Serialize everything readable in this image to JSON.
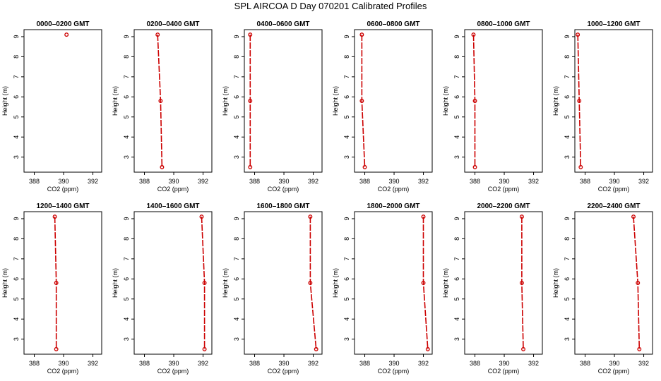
{
  "title": "SPL AIRCOA D  Day 070201  Calibrated Profiles",
  "colors": {
    "series": "#cc0000",
    "axis": "#000000"
  },
  "chart_data": [
    {
      "type": "line",
      "title": "0000–0200 GMT",
      "xlabel": "CO2 (ppm)",
      "ylabel": "Height (m)",
      "xlim": [
        387.3,
        392.6
      ],
      "ylim": [
        2.25,
        9.35
      ],
      "xticks": [
        388,
        390,
        392
      ],
      "yticks": [
        3,
        4,
        5,
        6,
        7,
        8,
        9
      ],
      "points": [
        {
          "x": 390.2,
          "y": 9.1
        }
      ]
    },
    {
      "type": "line",
      "title": "0200–0400 GMT",
      "xlabel": "CO2 (ppm)",
      "ylabel": "Height (m)",
      "xlim": [
        387.3,
        392.6
      ],
      "ylim": [
        2.25,
        9.35
      ],
      "xticks": [
        388,
        390,
        392
      ],
      "yticks": [
        3,
        4,
        5,
        6,
        7,
        8,
        9
      ],
      "points": [
        {
          "x": 388.9,
          "y": 9.1
        },
        {
          "x": 389.1,
          "y": 5.8
        },
        {
          "x": 389.2,
          "y": 2.5
        }
      ]
    },
    {
      "type": "line",
      "title": "0400–0600 GMT",
      "xlabel": "CO2 (ppm)",
      "ylabel": "Height (m)",
      "xlim": [
        387.3,
        392.6
      ],
      "ylim": [
        2.25,
        9.35
      ],
      "xticks": [
        388,
        390,
        392
      ],
      "yticks": [
        3,
        4,
        5,
        6,
        7,
        8,
        9
      ],
      "points": [
        {
          "x": 387.7,
          "y": 9.1
        },
        {
          "x": 387.7,
          "y": 5.8
        },
        {
          "x": 387.7,
          "y": 2.5
        }
      ]
    },
    {
      "type": "line",
      "title": "0600–0800 GMT",
      "xlabel": "CO2 (ppm)",
      "ylabel": "Height (m)",
      "xlim": [
        387.3,
        392.6
      ],
      "ylim": [
        2.25,
        9.35
      ],
      "xticks": [
        388,
        390,
        392
      ],
      "yticks": [
        3,
        4,
        5,
        6,
        7,
        8,
        9
      ],
      "points": [
        {
          "x": 387.8,
          "y": 9.1
        },
        {
          "x": 387.8,
          "y": 5.8
        },
        {
          "x": 388.0,
          "y": 2.5
        }
      ]
    },
    {
      "type": "line",
      "title": "0800–1000 GMT",
      "xlabel": "CO2 (ppm)",
      "ylabel": "Height (m)",
      "xlim": [
        387.3,
        392.6
      ],
      "ylim": [
        2.25,
        9.35
      ],
      "xticks": [
        388,
        390,
        392
      ],
      "yticks": [
        3,
        4,
        5,
        6,
        7,
        8,
        9
      ],
      "points": [
        {
          "x": 387.9,
          "y": 9.1
        },
        {
          "x": 388.0,
          "y": 5.8
        },
        {
          "x": 388.0,
          "y": 2.5
        }
      ]
    },
    {
      "type": "line",
      "title": "1000–1200 GMT",
      "xlabel": "CO2 (ppm)",
      "ylabel": "Height (m)",
      "xlim": [
        387.3,
        392.6
      ],
      "ylim": [
        2.25,
        9.35
      ],
      "xticks": [
        388,
        390,
        392
      ],
      "yticks": [
        3,
        4,
        5,
        6,
        7,
        8,
        9
      ],
      "points": [
        {
          "x": 387.5,
          "y": 9.1
        },
        {
          "x": 387.6,
          "y": 5.8
        },
        {
          "x": 387.7,
          "y": 2.5
        }
      ]
    },
    {
      "type": "line",
      "title": "1200–1400 GMT",
      "xlabel": "CO2 (ppm)",
      "ylabel": "Height (m)",
      "xlim": [
        387.3,
        392.6
      ],
      "ylim": [
        2.25,
        9.35
      ],
      "xticks": [
        388,
        390,
        392
      ],
      "yticks": [
        3,
        4,
        5,
        6,
        7,
        8,
        9
      ],
      "points": [
        {
          "x": 389.4,
          "y": 9.1
        },
        {
          "x": 389.5,
          "y": 5.8
        },
        {
          "x": 389.5,
          "y": 2.5
        }
      ]
    },
    {
      "type": "line",
      "title": "1400–1600 GMT",
      "xlabel": "CO2 (ppm)",
      "ylabel": "Height (m)",
      "xlim": [
        387.3,
        392.6
      ],
      "ylim": [
        2.25,
        9.35
      ],
      "xticks": [
        388,
        390,
        392
      ],
      "yticks": [
        3,
        4,
        5,
        6,
        7,
        8,
        9
      ],
      "points": [
        {
          "x": 391.9,
          "y": 9.1
        },
        {
          "x": 392.1,
          "y": 5.8
        },
        {
          "x": 392.1,
          "y": 2.5
        }
      ]
    },
    {
      "type": "line",
      "title": "1600–1800 GMT",
      "xlabel": "CO2 (ppm)",
      "ylabel": "Height (m)",
      "xlim": [
        387.3,
        392.6
      ],
      "ylim": [
        2.25,
        9.35
      ],
      "xticks": [
        388,
        390,
        392
      ],
      "yticks": [
        3,
        4,
        5,
        6,
        7,
        8,
        9
      ],
      "points": [
        {
          "x": 391.8,
          "y": 9.1
        },
        {
          "x": 391.8,
          "y": 5.8
        },
        {
          "x": 392.2,
          "y": 2.5
        }
      ]
    },
    {
      "type": "line",
      "title": "1800–2000 GMT",
      "xlabel": "CO2 (ppm)",
      "ylabel": "Height (m)",
      "xlim": [
        387.3,
        392.6
      ],
      "ylim": [
        2.25,
        9.35
      ],
      "xticks": [
        388,
        390,
        392
      ],
      "yticks": [
        3,
        4,
        5,
        6,
        7,
        8,
        9
      ],
      "points": [
        {
          "x": 392.0,
          "y": 9.1
        },
        {
          "x": 392.0,
          "y": 5.8
        },
        {
          "x": 392.3,
          "y": 2.5
        }
      ]
    },
    {
      "type": "line",
      "title": "2000–2200 GMT",
      "xlabel": "CO2 (ppm)",
      "ylabel": "Height (m)",
      "xlim": [
        387.3,
        392.6
      ],
      "ylim": [
        2.25,
        9.35
      ],
      "xticks": [
        388,
        390,
        392
      ],
      "yticks": [
        3,
        4,
        5,
        6,
        7,
        8,
        9
      ],
      "points": [
        {
          "x": 391.2,
          "y": 9.1
        },
        {
          "x": 391.2,
          "y": 5.8
        },
        {
          "x": 391.3,
          "y": 2.5
        }
      ]
    },
    {
      "type": "line",
      "title": "2200–2400 GMT",
      "xlabel": "CO2 (ppm)",
      "ylabel": "Height (m)",
      "xlim": [
        387.3,
        392.6
      ],
      "ylim": [
        2.25,
        9.35
      ],
      "xticks": [
        388,
        390,
        392
      ],
      "yticks": [
        3,
        4,
        5,
        6,
        7,
        8,
        9
      ],
      "points": [
        {
          "x": 391.3,
          "y": 9.1
        },
        {
          "x": 391.6,
          "y": 5.8
        },
        {
          "x": 391.7,
          "y": 2.5
        }
      ]
    }
  ]
}
